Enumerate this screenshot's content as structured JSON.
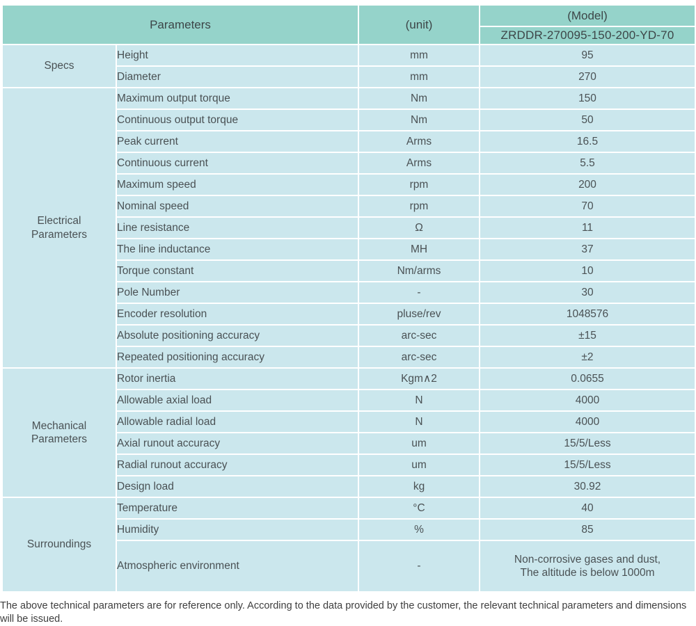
{
  "header": {
    "parameters_label": "Parameters",
    "unit_label": "(unit)",
    "model_label": "(Model)",
    "model_value": "ZRDDR-270095-150-200-YD-70"
  },
  "sections": [
    {
      "label": "Specs",
      "rows": [
        {
          "name": "Height",
          "unit": "mm",
          "value": "95"
        },
        {
          "name": "Diameter",
          "unit": "mm",
          "value": "270"
        }
      ]
    },
    {
      "label": "Electrical\nParameters",
      "rows": [
        {
          "name": "Maximum output torque",
          "unit": "Nm",
          "value": "150"
        },
        {
          "name": "Continuous output torque",
          "unit": "Nm",
          "value": "50"
        },
        {
          "name": "Peak current",
          "unit": "Arms",
          "value": "16.5"
        },
        {
          "name": "Continuous current",
          "unit": "Arms",
          "value": "5.5"
        },
        {
          "name": "Maximum speed",
          "unit": "rpm",
          "value": "200"
        },
        {
          "name": "Nominal speed",
          "unit": "rpm",
          "value": "70"
        },
        {
          "name": "Line resistance",
          "unit": "Ω",
          "value": "11"
        },
        {
          "name": "The line inductance",
          "unit": "MH",
          "value": "37"
        },
        {
          "name": "Torque constant",
          "unit": "Nm/arms",
          "value": "10"
        },
        {
          "name": "Pole Number",
          "unit": "-",
          "value": "30"
        },
        {
          "name": "Encoder resolution",
          "unit": "pluse/rev",
          "value": "1048576"
        },
        {
          "name": "Absolute positioning accuracy",
          "unit": "arc-sec",
          "value": "±15"
        },
        {
          "name": "Repeated positioning accuracy",
          "unit": "arc-sec",
          "value": "±2"
        }
      ]
    },
    {
      "label": "Mechanical\nParameters",
      "rows": [
        {
          "name": "Rotor inertia",
          "unit": "Kgm∧2",
          "value": "0.0655"
        },
        {
          "name": "Allowable axial load",
          "unit": "N",
          "value": "4000"
        },
        {
          "name": "Allowable radial load",
          "unit": "N",
          "value": "4000"
        },
        {
          "name": "Axial runout accuracy",
          "unit": "um",
          "value": "15/5/Less"
        },
        {
          "name": "Radial runout accuracy",
          "unit": "um",
          "value": "15/5/Less"
        },
        {
          "name": "Design load",
          "unit": "kg",
          "value": "30.92"
        }
      ]
    },
    {
      "label": "Surroundings",
      "rows": [
        {
          "name": "Temperature",
          "unit": "°C",
          "value": "40"
        },
        {
          "name": "Humidity",
          "unit": "%",
          "value": "85"
        },
        {
          "name": "Atmospheric environment",
          "unit": "-",
          "value": "Non-corrosive gases and dust,\nThe altitude is below 1000m"
        }
      ]
    }
  ],
  "footer_note": "The above technical parameters are for reference only. According to the data provided by the customer, the relevant technical parameters and dimensions will be issued.",
  "colors": {
    "header_bg": "#95d3ca",
    "cell_bg": "#cbe7ed",
    "divider": "#ffffff",
    "body_text": "#4a5154",
    "header_text": "#3d4648"
  }
}
